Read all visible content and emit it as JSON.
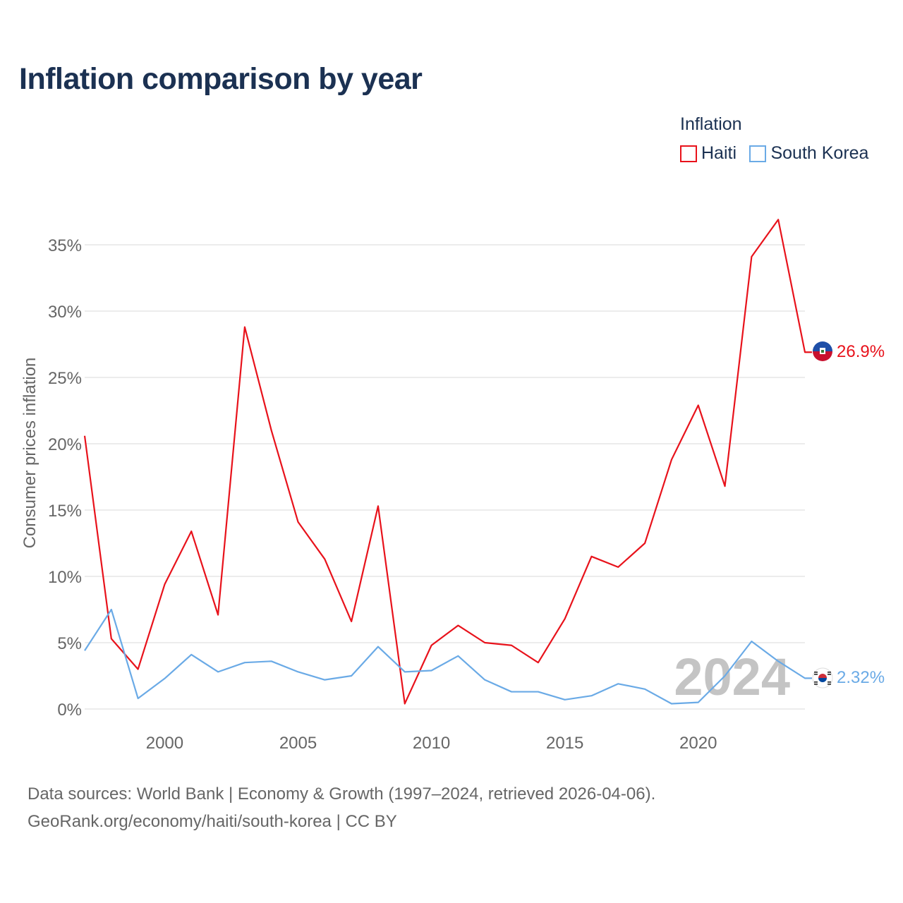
{
  "header": {
    "title": "Inflation comparison by year"
  },
  "legend": {
    "title": "Inflation",
    "items": [
      {
        "label": "Haiti",
        "color": "#e8121b"
      },
      {
        "label": "South Korea",
        "color": "#6aaae6"
      }
    ]
  },
  "watermark_year": "2024",
  "end_labels": {
    "haiti": "26.9%",
    "south_korea": "2.32%"
  },
  "footer": {
    "line1": "Data sources: World Bank | Economy & Growth (1997–2024, retrieved 2026-04-06).",
    "line2": "GeoRank.org/economy/haiti/south-korea | CC BY"
  },
  "chart_data": {
    "type": "line",
    "title": "Inflation comparison by year",
    "xlabel": "",
    "ylabel": "Consumer prices inflation",
    "xlim": [
      1997,
      2024
    ],
    "ylim": [
      0,
      37.5
    ],
    "x_ticks": [
      2000,
      2005,
      2010,
      2015,
      2020
    ],
    "y_ticks": [
      0,
      5,
      10,
      15,
      20,
      25,
      30,
      35
    ],
    "y_tick_labels": [
      "0%",
      "5%",
      "10%",
      "15%",
      "20%",
      "25%",
      "30%",
      "35%"
    ],
    "grid": true,
    "legend_position": "top-right",
    "x": [
      1997,
      1998,
      1999,
      2000,
      2001,
      2002,
      2003,
      2004,
      2005,
      2006,
      2007,
      2008,
      2009,
      2010,
      2011,
      2012,
      2013,
      2014,
      2015,
      2016,
      2017,
      2018,
      2019,
      2020,
      2021,
      2022,
      2023,
      2024
    ],
    "series": [
      {
        "name": "Haiti",
        "color": "#e8121b",
        "values": [
          20.6,
          5.3,
          3.0,
          9.4,
          13.4,
          7.1,
          28.8,
          21.0,
          14.1,
          11.3,
          6.6,
          15.3,
          0.4,
          4.8,
          6.3,
          5.0,
          4.8,
          3.5,
          6.8,
          11.5,
          10.7,
          12.5,
          18.8,
          22.9,
          16.8,
          34.1,
          36.9,
          26.9
        ]
      },
      {
        "name": "South Korea",
        "color": "#6aaae6",
        "values": [
          4.4,
          7.5,
          0.8,
          2.3,
          4.1,
          2.8,
          3.5,
          3.6,
          2.8,
          2.2,
          2.5,
          4.7,
          2.8,
          2.9,
          4.0,
          2.2,
          1.3,
          1.3,
          0.7,
          1.0,
          1.9,
          1.5,
          0.4,
          0.5,
          2.5,
          5.1,
          3.6,
          2.32
        ]
      }
    ]
  }
}
